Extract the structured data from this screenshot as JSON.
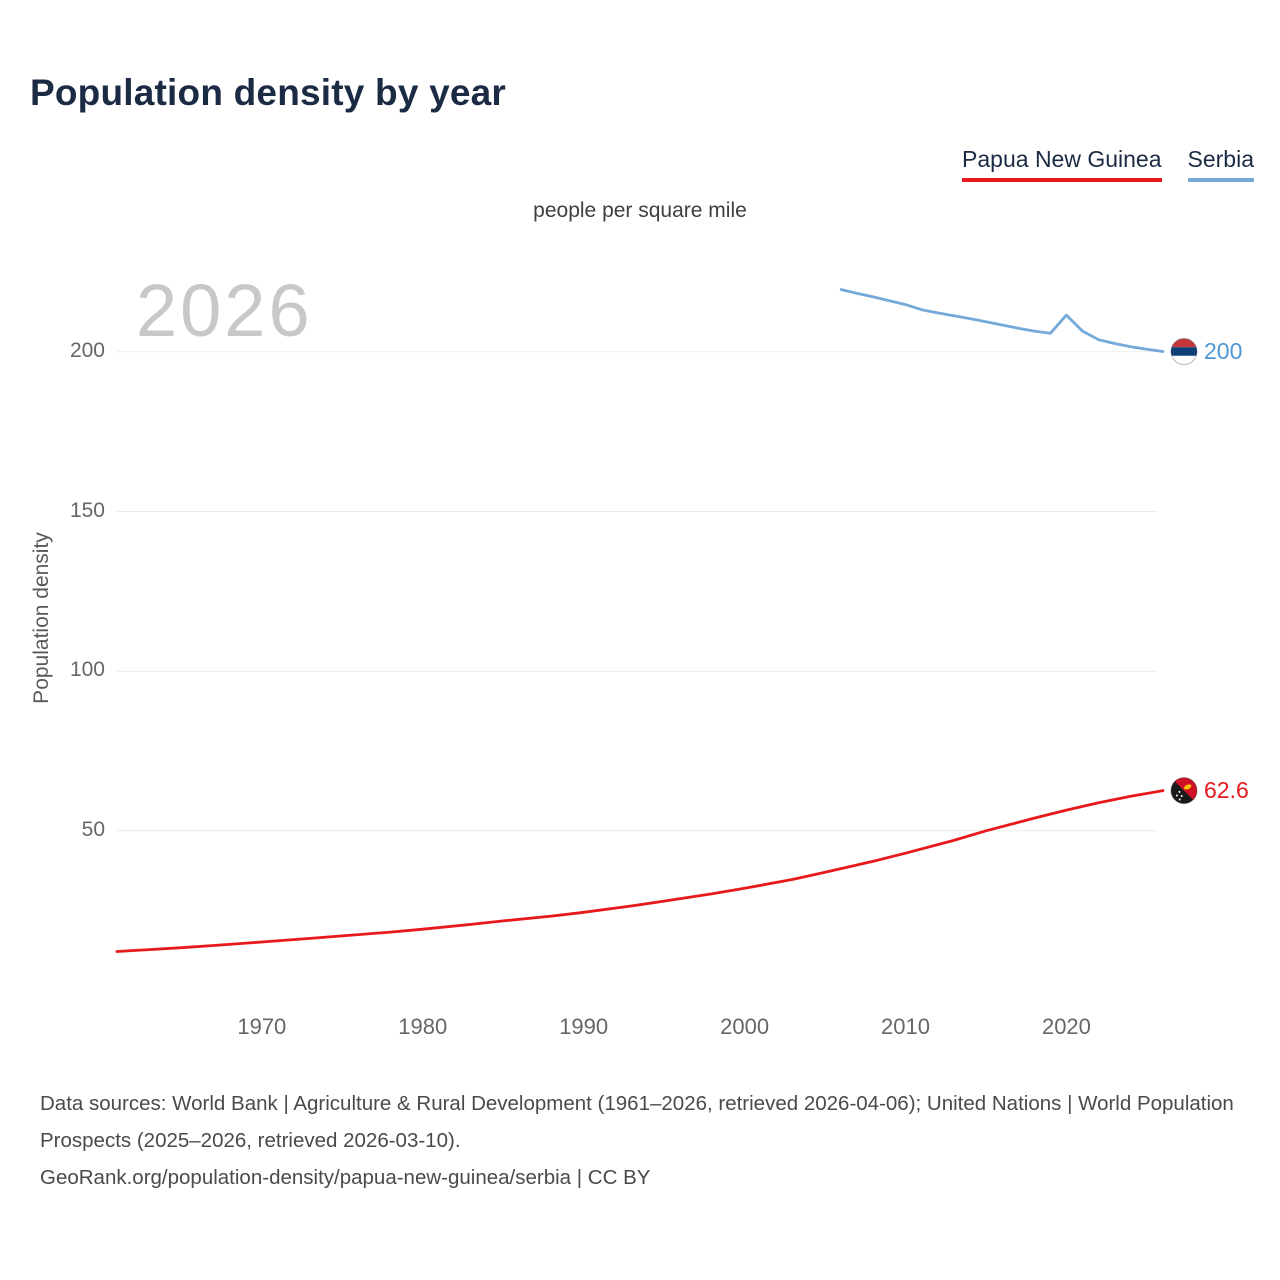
{
  "title": "Population density by year",
  "subtitle": "people per square mile",
  "watermark": "2026",
  "legend": {
    "png_label": "Papua New Guinea",
    "serbia_label": "Serbia",
    "png_color": "#e8191c",
    "serbia_color": "#74a9d8"
  },
  "chart_data": {
    "type": "line",
    "title": "Population density by year",
    "unit_label": "people per square mile",
    "xlabel": "",
    "ylabel": "Population density",
    "xlim": [
      1961,
      2026
    ],
    "ylim": [
      0,
      232
    ],
    "x_ticks": [
      1970,
      1980,
      1990,
      2000,
      2010,
      2020
    ],
    "y_ticks": [
      50,
      100,
      150,
      200
    ],
    "grid": "horizontal",
    "legend_position": "top-right",
    "series": [
      {
        "name": "Papua New Guinea",
        "flag": "papua-new-guinea",
        "color": "#e8191c",
        "label_color": "#e8191c",
        "end_label": "62.6",
        "end_value": 62.6,
        "x": [
          1961,
          1963,
          1965,
          1967,
          1970,
          1973,
          1975,
          1978,
          1980,
          1983,
          1985,
          1988,
          1990,
          1993,
          1995,
          1998,
          2000,
          2003,
          2005,
          2008,
          2010,
          2013,
          2015,
          2018,
          2020,
          2022,
          2024,
          2026
        ],
        "y": [
          12.2,
          12.8,
          13.4,
          14.1,
          15.2,
          16.3,
          17.1,
          18.3,
          19.2,
          20.7,
          21.8,
          23.3,
          24.5,
          26.5,
          28.0,
          30.3,
          32.0,
          34.8,
          37.0,
          40.5,
          43.0,
          47.0,
          50.0,
          54.0,
          56.5,
          58.8,
          60.8,
          62.6
        ]
      },
      {
        "name": "Serbia",
        "flag": "serbia",
        "color": "#74a9d8",
        "label_color": "#4f97d4",
        "end_label": "200",
        "end_value": 200,
        "x": [
          2006,
          2007,
          2008,
          2009,
          2010,
          2011,
          2012,
          2013,
          2014,
          2015,
          2016,
          2017,
          2018,
          2019,
          2020,
          2021,
          2022,
          2023,
          2024,
          2025,
          2026
        ],
        "y": [
          219.5,
          218.3,
          217.2,
          216.0,
          214.8,
          213.2,
          212.2,
          211.3,
          210.4,
          209.4,
          208.4,
          207.4,
          206.5,
          205.8,
          211.5,
          206.5,
          203.8,
          202.6,
          201.6,
          200.8,
          200.1
        ]
      }
    ]
  },
  "footer": {
    "sources": "Data sources: World Bank | Agriculture & Rural Development (1961–2026, retrieved 2026-04-06); United Nations | World Population Prospects (2025–2026, retrieved 2026-03-10).",
    "attribution": "GeoRank.org/population-density/papua-new-guinea/serbia | CC BY"
  }
}
